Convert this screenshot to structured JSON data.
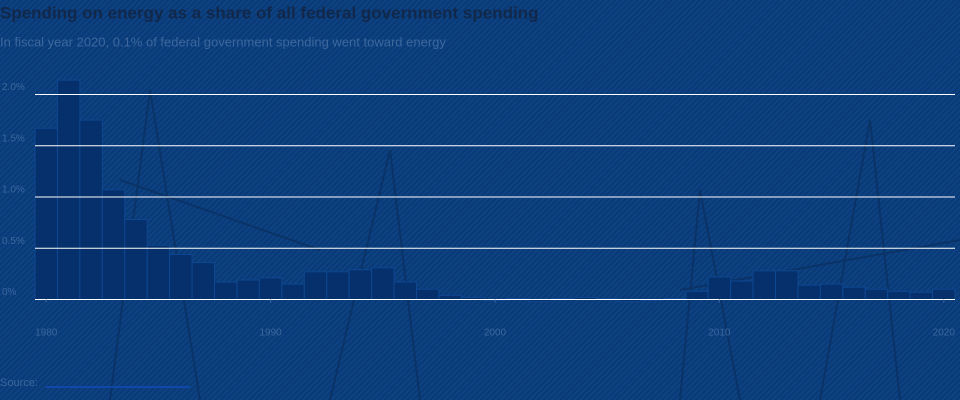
{
  "chart_data": {
    "type": "bar",
    "title": "Spending on energy as a share of all federal government spending",
    "subtitle": "In fiscal year 2020, 0.1% of federal government spending went toward energy",
    "source": "Source:",
    "x": [
      1980,
      1981,
      1982,
      1983,
      1984,
      1985,
      1986,
      1987,
      1988,
      1989,
      1990,
      1991,
      1992,
      1993,
      1994,
      1995,
      1996,
      1997,
      1998,
      1999,
      2000,
      2001,
      2002,
      2003,
      2004,
      2005,
      2006,
      2007,
      2008,
      2009,
      2010,
      2011,
      2012,
      2013,
      2014,
      2015,
      2016,
      2017,
      2018,
      2019,
      2020
    ],
    "values": [
      1.67,
      2.14,
      1.75,
      1.07,
      0.78,
      0.53,
      0.44,
      0.36,
      0.17,
      0.19,
      0.21,
      0.15,
      0.27,
      0.27,
      0.29,
      0.31,
      0.17,
      0.1,
      0.04,
      0.02,
      -0.01,
      0.01,
      -0.02,
      0.01,
      0.02,
      0.01,
      -0.02,
      -0.01,
      0.01,
      0.08,
      0.22,
      0.18,
      0.28,
      0.28,
      0.14,
      0.15,
      0.12,
      0.1,
      0.08,
      0.07,
      0.1
    ],
    "color": "#06306b",
    "xlim": [
      1979.5,
      2020.5
    ],
    "xticks": [
      1980,
      1990,
      2000,
      2010,
      2020
    ],
    "ylim": [
      -0.2,
      2.2
    ],
    "yticks": [
      {
        "value": 0,
        "label": "0%"
      },
      {
        "value": 0.5,
        "label": "0.5%"
      },
      {
        "value": 1,
        "label": "1.0%"
      },
      {
        "value": 1.5,
        "label": "1.5%"
      },
      {
        "value": 2,
        "label": "2.0%"
      }
    ],
    "grid": true
  }
}
